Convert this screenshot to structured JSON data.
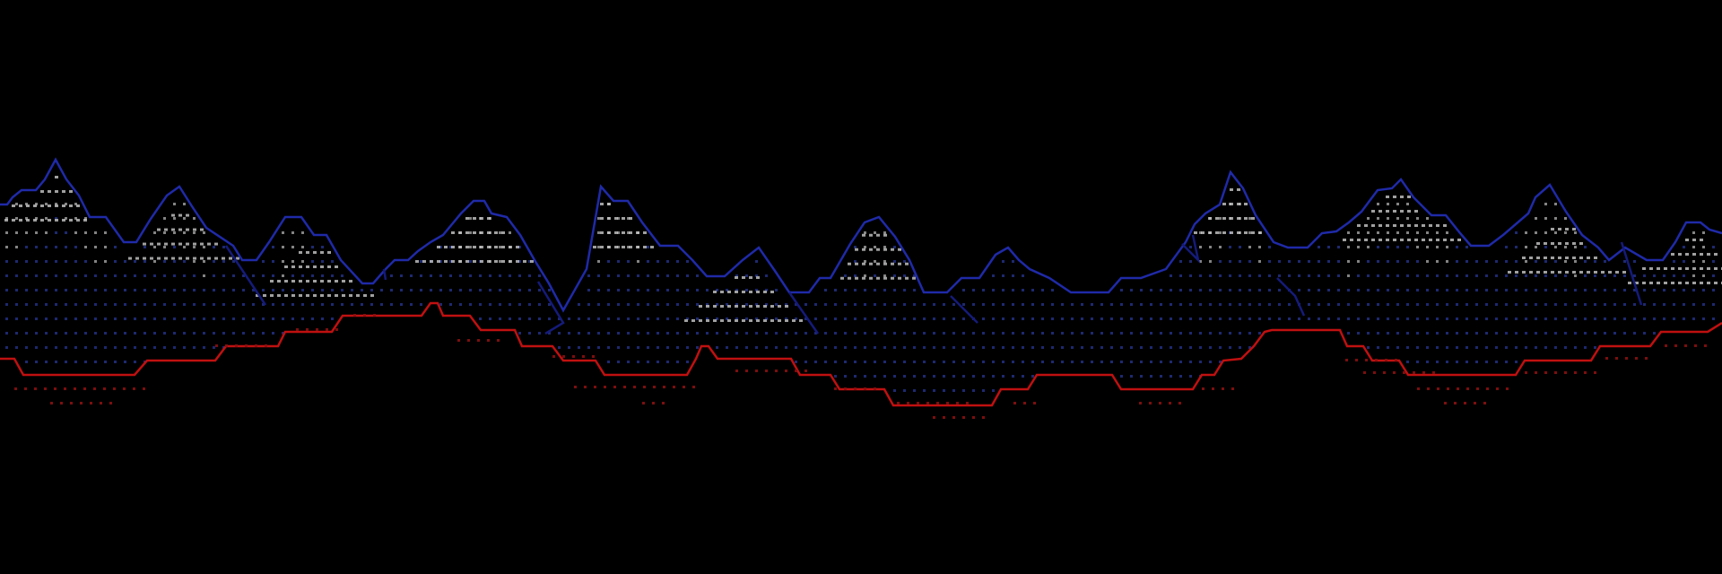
{
  "scene": {
    "name": "ascii-mountain-landscape",
    "colors": {
      "background": "#000000",
      "mountain_outline": "#1f2aa8",
      "mountain_outline_dark": "#151b7a",
      "shading_dots_blue": "#2a3aa0",
      "shading_dots_gray": "#9a9a9a",
      "snow_dots": "#c8c8c8",
      "ground_line": "#c01010",
      "ground_dots": "#8a1010"
    },
    "mountain_peaks": [
      {
        "id": "peak-1"
      },
      {
        "id": "peak-2"
      },
      {
        "id": "peak-3"
      },
      {
        "id": "peak-4"
      },
      {
        "id": "peak-5"
      },
      {
        "id": "peak-6"
      },
      {
        "id": "peak-7"
      },
      {
        "id": "peak-8"
      },
      {
        "id": "peak-9"
      },
      {
        "id": "peak-10"
      },
      {
        "id": "peak-11"
      },
      {
        "id": "peak-12"
      }
    ]
  }
}
